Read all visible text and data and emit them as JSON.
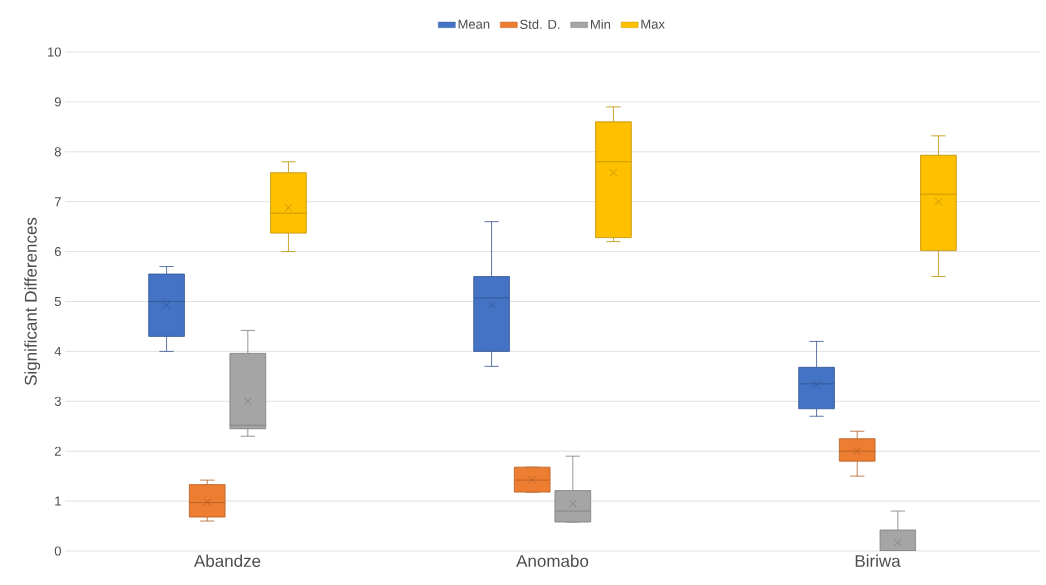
{
  "chart_data": {
    "type": "box",
    "ylabel": "Significant Differences",
    "categories": [
      "Abandze",
      "Anomabo",
      "Biriwa"
    ],
    "ylim": [
      0,
      10
    ],
    "yticks": [
      0,
      1,
      2,
      3,
      4,
      5,
      6,
      7,
      8,
      9,
      10
    ],
    "grid": "y",
    "legend": "top",
    "series": [
      {
        "name": "Mean",
        "color": "#4472c4",
        "boxes": [
          {
            "low": 4.0,
            "q1": 4.3,
            "median": 5.0,
            "q3": 5.55,
            "high": 5.7,
            "mean": 4.93
          },
          {
            "low": 3.7,
            "q1": 4.0,
            "median": 5.07,
            "q3": 5.5,
            "high": 6.6,
            "mean": 4.93
          },
          {
            "low": 2.7,
            "q1": 2.85,
            "median": 3.35,
            "q3": 3.68,
            "high": 4.2,
            "mean": 3.33
          }
        ]
      },
      {
        "name": "Std. D.",
        "color": "#ed7d31",
        "boxes": [
          {
            "low": 0.6,
            "q1": 0.68,
            "median": 0.97,
            "q3": 1.33,
            "high": 1.42,
            "mean": 0.98
          },
          {
            "low": 1.18,
            "q1": 1.18,
            "median": 1.42,
            "q3": 1.68,
            "high": 1.68,
            "mean": 1.43
          },
          {
            "low": 1.5,
            "q1": 1.8,
            "median": 2.0,
            "q3": 2.25,
            "high": 2.4,
            "mean": 2.0
          }
        ]
      },
      {
        "name": "Min",
        "color": "#a5a5a5",
        "boxes": [
          {
            "low": 2.3,
            "q1": 2.45,
            "median": 2.52,
            "q3": 3.96,
            "high": 4.42,
            "mean": 3.0
          },
          {
            "low": 0.58,
            "q1": 0.58,
            "median": 0.8,
            "q3": 1.21,
            "high": 1.9,
            "mean": 0.95
          },
          {
            "low": 0,
            "q1": 0,
            "median": 0,
            "q3": 0.42,
            "high": 0.8,
            "mean": 0.17
          }
        ]
      },
      {
        "name": "Max",
        "color": "#ffc000",
        "boxes": [
          {
            "low": 6.0,
            "q1": 6.37,
            "median": 6.77,
            "q3": 7.58,
            "high": 7.8,
            "mean": 6.88
          },
          {
            "low": 6.2,
            "q1": 6.28,
            "median": 7.8,
            "q3": 8.6,
            "high": 8.9,
            "mean": 7.58
          },
          {
            "low": 5.5,
            "q1": 6.02,
            "median": 7.15,
            "q3": 7.93,
            "high": 8.32,
            "mean": 7.0
          }
        ]
      }
    ]
  }
}
